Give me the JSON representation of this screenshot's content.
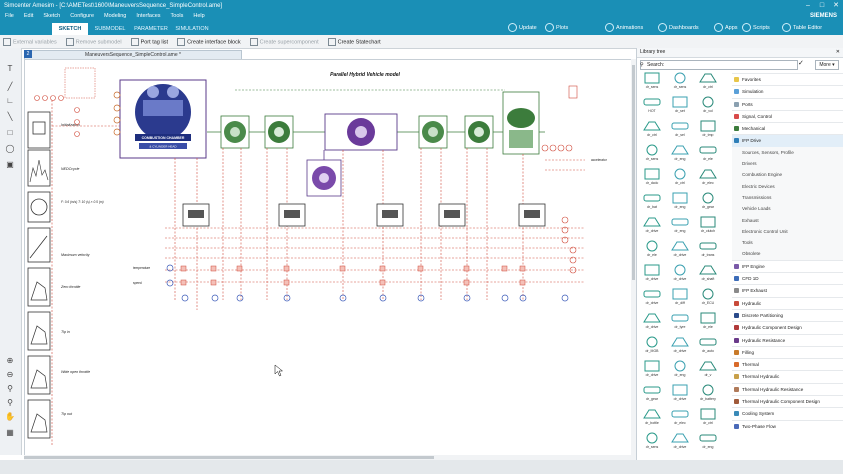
{
  "window": {
    "title": "Simcenter Amesim - [C:\\AMETest\\1600\\ManeuversSequence_SimpleControl.ame]",
    "brand": "SIEMENS"
  },
  "menu": [
    "File",
    "Edit",
    "Sketch",
    "Configure",
    "Modeling",
    "Interfaces",
    "Tools",
    "Help"
  ],
  "ribbon": {
    "modes": [
      "SKETCH",
      "SUBMODEL",
      "PARAMETER",
      "SIMULATION"
    ],
    "active_mode": "SKETCH",
    "tools": [
      "Update",
      "Plots",
      "Animations",
      "Dashboards",
      "Apps",
      "Scripts",
      "Table Editor"
    ]
  },
  "toolbar": {
    "external_variables": "External variables",
    "remove_submodel": "Remove submodel",
    "port_tag_list": "Port tag list",
    "create_interface_block": "Create interface block",
    "create_supercomponent": "Create supercomponent",
    "create_statechart": "Create Statechart"
  },
  "document": {
    "tab_number": "2",
    "tab_title": "ManeuversSequence_SimpleControl.ame *",
    "model_title": "Parallel Hybrid Vehicle model",
    "engine_label": "COMBUSTION CHAMBER",
    "engine_sublabel": "& CYLINDER HEAD"
  },
  "sketch_labels": {
    "initialization": "Initialization",
    "nedc_cycle": "NEDCcycle",
    "ratios": "F: 0.6 (m/s) T: 10 (s) r: 0.5 (m)",
    "maximum_velocity": "Maximum velocity",
    "zero_throttle": "Zero throttle",
    "tip_in": "Tip in",
    "wide_open_throttle": "Wide open throttle",
    "tip_out": "Tip out",
    "accelerator": "accelerator",
    "temp_label": "temperature",
    "speed_label": "speed"
  },
  "library": {
    "title": "Library tree",
    "search_label": "Search:",
    "search_value": "",
    "more": "More",
    "categories": [
      {
        "label": "Favorites",
        "color": "#e8c64a",
        "sub": false,
        "sel": false
      },
      {
        "label": "Simulation",
        "color": "#5aa0d8",
        "sub": false,
        "sel": false
      },
      {
        "label": "Ports",
        "color": "#8aa0b0",
        "sub": false,
        "sel": false
      },
      {
        "label": "Signal, Control",
        "color": "#d84a4a",
        "sub": false,
        "sel": false
      },
      {
        "label": "Mechanical",
        "color": "#3c7c3c",
        "sub": false,
        "sel": false
      },
      {
        "label": "IFP Drive",
        "color": "#2f7fb8",
        "sub": false,
        "sel": true
      },
      {
        "label": "Sources, Sensors, Profile",
        "color": "",
        "sub": true,
        "sel": false
      },
      {
        "label": "Drivers",
        "color": "",
        "sub": true,
        "sel": false
      },
      {
        "label": "Combustion Engine",
        "color": "",
        "sub": true,
        "sel": false
      },
      {
        "label": "Electric Devices",
        "color": "",
        "sub": true,
        "sel": false
      },
      {
        "label": "Transmissions",
        "color": "",
        "sub": true,
        "sel": false
      },
      {
        "label": "Vehicle Loads",
        "color": "",
        "sub": true,
        "sel": false
      },
      {
        "label": "Exhaust",
        "color": "",
        "sub": true,
        "sel": false
      },
      {
        "label": "Electronic Control Unit",
        "color": "",
        "sub": true,
        "sel": false
      },
      {
        "label": "Tools",
        "color": "",
        "sub": true,
        "sel": false
      },
      {
        "label": "Obsolete",
        "color": "",
        "sub": true,
        "sel": false
      },
      {
        "label": "IFP Engine",
        "color": "#7a5aa8",
        "sub": false,
        "sel": false
      },
      {
        "label": "CFD 1D",
        "color": "#3c6cb8",
        "sub": false,
        "sel": false
      },
      {
        "label": "IFP Exhaust",
        "color": "#8a8a8a",
        "sub": false,
        "sel": false
      },
      {
        "label": "Hydraulic",
        "color": "#c84a3a",
        "sub": false,
        "sel": false
      },
      {
        "label": "Discrete Partitioning",
        "color": "#2a4a8a",
        "sub": false,
        "sel": false
      },
      {
        "label": "Hydraulic Component Design",
        "color": "#b03a3a",
        "sub": false,
        "sel": false
      },
      {
        "label": "Hydraulic Resistance",
        "color": "#6a3a8a",
        "sub": false,
        "sel": false
      },
      {
        "label": "Filling",
        "color": "#c87a2a",
        "sub": false,
        "sel": false
      },
      {
        "label": "Thermal",
        "color": "#d86a2a",
        "sub": false,
        "sel": false
      },
      {
        "label": "Thermal Hydraulic",
        "color": "#c8a04a",
        "sub": false,
        "sel": false
      },
      {
        "label": "Thermal Hydraulic Resistance",
        "color": "#b07a5a",
        "sub": false,
        "sel": false
      },
      {
        "label": "Thermal Hydraulic Component Design",
        "color": "#a05a3a",
        "sub": false,
        "sel": false
      },
      {
        "label": "Cooling System",
        "color": "#3a8ab8",
        "sub": false,
        "sel": false
      },
      {
        "label": "Two-Phase Flow",
        "color": "#4a6ab8",
        "sub": false,
        "sel": false
      }
    ],
    "icons": [
      "dr_sens",
      "dr_sens",
      "dr_ctrl",
      "HOT",
      "dr_set",
      "dr_vol",
      "dr_ctrl",
      "dr_sel",
      "dr_tmp",
      "dr_sens",
      "dr_eng",
      "dr_ele",
      "dr_dcdc",
      "dr_ctrl",
      "dr_elec",
      "dr_bat",
      "dr_eng",
      "dr_gear",
      "dr_drive",
      "dr_eng",
      "dr_clutch",
      "dr_ele",
      "dr_drive",
      "dr_trans",
      "dr_drive",
      "dr_drive",
      "dr_shaft",
      "dr_drive",
      "dr_diff",
      "dr_ECU",
      "dr_drive",
      "dr_tyre",
      "dr_ele",
      "dr_MGB",
      "dr_drive",
      "dr_auto",
      "dr_drive",
      "dr_eng",
      "dr_v",
      "dr_gear",
      "dr_drive",
      "dr_battery",
      "dr_bottle",
      "dr_elec",
      "dr_ctrl",
      "dr_sens",
      "dr_drive",
      "dr_eng"
    ]
  }
}
